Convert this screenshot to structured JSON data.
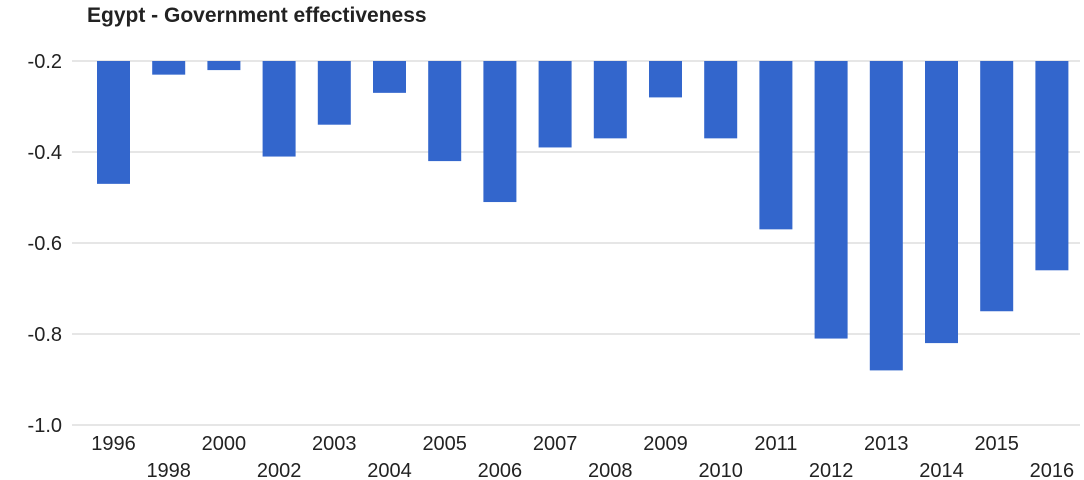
{
  "chart_data": {
    "type": "bar",
    "title": "Egypt - Government effectiveness",
    "xlabel": "",
    "ylabel": "",
    "categories": [
      "1996",
      "1998",
      "2000",
      "2002",
      "2003",
      "2004",
      "2005",
      "2006",
      "2007",
      "2008",
      "2009",
      "2010",
      "2011",
      "2012",
      "2013",
      "2014",
      "2015",
      "2016"
    ],
    "values": [
      -0.47,
      -0.23,
      -0.22,
      -0.41,
      -0.34,
      -0.27,
      -0.42,
      -0.51,
      -0.39,
      -0.37,
      -0.28,
      -0.37,
      -0.57,
      -0.81,
      -0.88,
      -0.82,
      -0.75,
      -0.66
    ],
    "ylim": [
      -1.0,
      -0.2
    ],
    "yticks": [
      "-0.2",
      "-0.4",
      "-0.6",
      "-0.8",
      "-1.0"
    ],
    "bar_color": "#3366cc",
    "grid": true,
    "legend": "none"
  }
}
